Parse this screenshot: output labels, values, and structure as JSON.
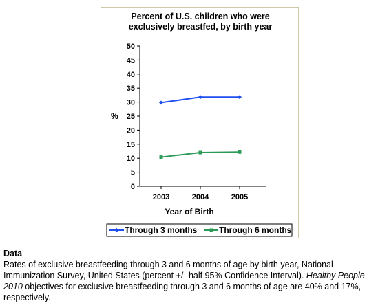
{
  "chart_data": {
    "type": "line",
    "title_lines": [
      "Percent of U.S. children who were",
      "exclusively breastfed, by birth year"
    ],
    "xlabel": "Year of Birth",
    "ylabel": "%",
    "categories": [
      "2003",
      "2004",
      "2005"
    ],
    "ylim": [
      0,
      50
    ],
    "yticks": [
      "0",
      "5",
      "10",
      "15",
      "20",
      "25",
      "30",
      "35",
      "40",
      "45",
      "50"
    ],
    "grid": false,
    "legend": "bottom",
    "series": [
      {
        "name": "Through 3 months",
        "values": [
          29.8,
          31.8,
          31.8
        ],
        "color": "#1f4ff0",
        "marker": "diamond"
      },
      {
        "name": "Through 6 months",
        "values": [
          10.4,
          12.0,
          12.2
        ],
        "color": "#2e9a5a",
        "marker": "square"
      }
    ]
  },
  "data_section": {
    "heading": "Data",
    "text_before": "Rates of exclusive breastfeeding through 3 and 6 months of age by birth year, National Immunization Survey, United States (percent +/- half 95% Confidence Interval). ",
    "text_italic": "Healthy People 2010",
    "text_after": " objectives for exclusive breastfeeding through 3 and 6 months of age are 40% and 17%, respectively."
  }
}
